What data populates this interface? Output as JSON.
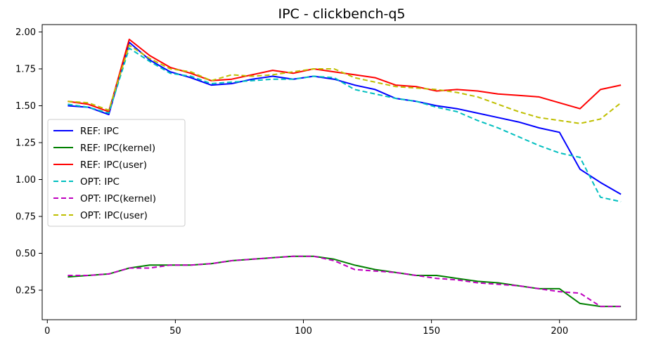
{
  "chart_data": {
    "type": "line",
    "title": "IPC - clickbench-q5",
    "xlabel": "",
    "ylabel": "",
    "xlim": [
      -2,
      230
    ],
    "ylim": [
      0.05,
      2.05
    ],
    "xticks": [
      0,
      50,
      100,
      150,
      200
    ],
    "yticks": [
      0.25,
      0.5,
      0.75,
      1.0,
      1.25,
      1.5,
      1.75,
      2.0
    ],
    "xtick_labels": [
      "0",
      "50",
      "100",
      "150",
      "200"
    ],
    "ytick_labels": [
      "0.25",
      "0.50",
      "0.75",
      "1.00",
      "1.25",
      "1.50",
      "1.75",
      "2.00"
    ],
    "grid": false,
    "legend_position": "center-left",
    "x": [
      8,
      16,
      24,
      32,
      40,
      48,
      56,
      64,
      72,
      80,
      88,
      96,
      104,
      112,
      120,
      128,
      136,
      144,
      152,
      160,
      168,
      176,
      184,
      192,
      200,
      208,
      216,
      224
    ],
    "series": [
      {
        "name": "REF: IPC",
        "color": "#0000ff",
        "dash": "solid",
        "values": [
          1.5,
          1.49,
          1.44,
          1.93,
          1.81,
          1.73,
          1.69,
          1.64,
          1.65,
          1.68,
          1.7,
          1.68,
          1.7,
          1.68,
          1.64,
          1.61,
          1.55,
          1.53,
          1.5,
          1.48,
          1.45,
          1.42,
          1.39,
          1.35,
          1.32,
          1.07,
          0.98,
          0.9
        ]
      },
      {
        "name": "REF: IPC(kernel)",
        "color": "#008000",
        "dash": "solid",
        "values": [
          0.34,
          0.35,
          0.36,
          0.4,
          0.42,
          0.42,
          0.42,
          0.43,
          0.45,
          0.46,
          0.47,
          0.48,
          0.48,
          0.46,
          0.42,
          0.39,
          0.37,
          0.35,
          0.35,
          0.33,
          0.31,
          0.3,
          0.28,
          0.26,
          0.26,
          0.16,
          0.14,
          0.14
        ]
      },
      {
        "name": "REF: IPC(user)",
        "color": "#ff0000",
        "dash": "solid",
        "values": [
          1.53,
          1.51,
          1.46,
          1.95,
          1.84,
          1.76,
          1.72,
          1.67,
          1.68,
          1.71,
          1.74,
          1.72,
          1.75,
          1.73,
          1.71,
          1.69,
          1.64,
          1.63,
          1.6,
          1.61,
          1.6,
          1.58,
          1.57,
          1.56,
          1.52,
          1.48,
          1.61,
          1.64
        ]
      },
      {
        "name": "OPT: IPC",
        "color": "#00bfbf",
        "dash": "dashed",
        "values": [
          1.51,
          1.49,
          1.45,
          1.89,
          1.8,
          1.72,
          1.7,
          1.65,
          1.66,
          1.67,
          1.68,
          1.68,
          1.7,
          1.69,
          1.61,
          1.58,
          1.55,
          1.53,
          1.49,
          1.46,
          1.4,
          1.35,
          1.29,
          1.23,
          1.18,
          1.15,
          0.88,
          0.85
        ]
      },
      {
        "name": "OPT: IPC(kernel)",
        "color": "#bf00bf",
        "dash": "dashed",
        "values": [
          0.35,
          0.35,
          0.36,
          0.4,
          0.4,
          0.42,
          0.42,
          0.43,
          0.45,
          0.46,
          0.47,
          0.48,
          0.48,
          0.45,
          0.39,
          0.38,
          0.37,
          0.35,
          0.33,
          0.32,
          0.3,
          0.29,
          0.28,
          0.26,
          0.24,
          0.23,
          0.14,
          0.14
        ]
      },
      {
        "name": "OPT: IPC(user)",
        "color": "#bfbf00",
        "dash": "dashed",
        "values": [
          1.53,
          1.52,
          1.47,
          1.91,
          1.82,
          1.75,
          1.73,
          1.67,
          1.71,
          1.7,
          1.71,
          1.73,
          1.75,
          1.75,
          1.69,
          1.66,
          1.63,
          1.62,
          1.61,
          1.59,
          1.56,
          1.51,
          1.46,
          1.42,
          1.4,
          1.38,
          1.41,
          1.52
        ]
      }
    ]
  }
}
